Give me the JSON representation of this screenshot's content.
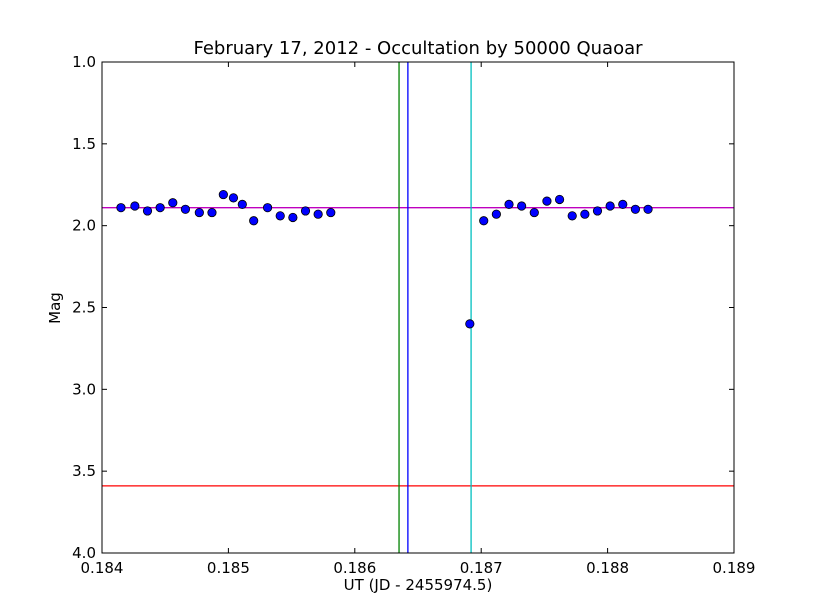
{
  "chart_data": {
    "type": "scatter",
    "title": "February 17, 2012 - Occultation by 50000 Quaoar",
    "xlabel": "UT (JD - 2455974.5)",
    "ylabel": "Mag",
    "xlim": [
      0.184,
      0.189
    ],
    "ylim": [
      4.0,
      1.0
    ],
    "y_inverted": true,
    "grid": false,
    "x_ticks": [
      "0.184",
      "0.185",
      "0.186",
      "0.187",
      "0.188",
      "0.189"
    ],
    "y_ticks": [
      "1.0",
      "1.5",
      "2.0",
      "2.5",
      "3.0",
      "3.5",
      "4.0"
    ],
    "series": [
      {
        "color": "#0000ff",
        "points": [
          [
            0.18415,
            1.89
          ],
          [
            0.18426,
            1.88
          ],
          [
            0.18436,
            1.91
          ],
          [
            0.18446,
            1.89
          ],
          [
            0.18456,
            1.86
          ],
          [
            0.18466,
            1.9
          ],
          [
            0.18477,
            1.92
          ],
          [
            0.18487,
            1.92
          ],
          [
            0.18496,
            1.81
          ],
          [
            0.18504,
            1.83
          ],
          [
            0.18511,
            1.87
          ],
          [
            0.1852,
            1.97
          ],
          [
            0.18531,
            1.89
          ],
          [
            0.18541,
            1.94
          ],
          [
            0.18551,
            1.95
          ],
          [
            0.18561,
            1.91
          ],
          [
            0.18571,
            1.93
          ],
          [
            0.18581,
            1.92
          ],
          [
            0.18691,
            2.6
          ],
          [
            0.18702,
            1.97
          ],
          [
            0.18712,
            1.93
          ],
          [
            0.18722,
            1.87
          ],
          [
            0.18732,
            1.88
          ],
          [
            0.18742,
            1.92
          ],
          [
            0.18752,
            1.85
          ],
          [
            0.18762,
            1.84
          ],
          [
            0.18772,
            1.94
          ],
          [
            0.18782,
            1.93
          ],
          [
            0.18792,
            1.91
          ],
          [
            0.18802,
            1.88
          ],
          [
            0.18812,
            1.87
          ],
          [
            0.18822,
            1.9
          ],
          [
            0.18832,
            1.9
          ]
        ]
      }
    ],
    "reference_lines": {
      "horizontal": [
        {
          "y": 1.89,
          "color": "#bf00bf"
        },
        {
          "y": 3.59,
          "color": "#ff0000"
        }
      ],
      "vertical": [
        {
          "x": 0.18635,
          "color": "#008000"
        },
        {
          "x": 0.18642,
          "color": "#0000ff"
        },
        {
          "x": 0.18692,
          "color": "#00bfbf"
        }
      ]
    }
  }
}
